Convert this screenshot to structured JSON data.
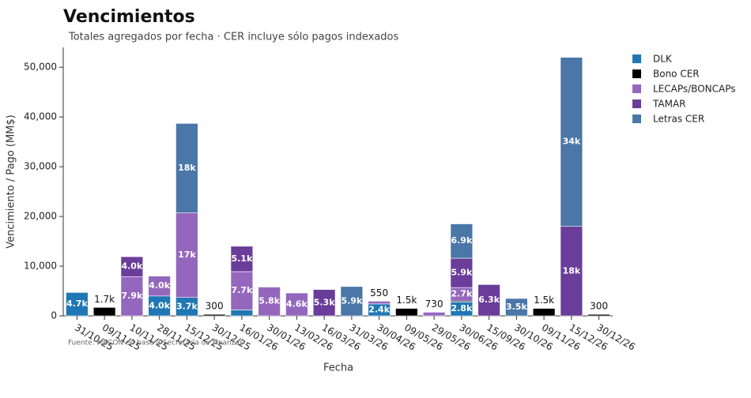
{
  "chart_data": {
    "type": "bar",
    "stacked": true,
    "title": "Vencimientos",
    "subtitle": "Totales agregados por fecha · CER incluye sólo pagos indexados",
    "x_label": "Fecha",
    "y_label": "Vencimiento / Pago (MM$)",
    "source": "Fuente: MECON en base a Secretaría de Finanzas",
    "legend": "top-right",
    "categories": [
      "31/10/25",
      "09/11/25",
      "10/11/25",
      "28/11/25",
      "15/12/25",
      "30/12/25",
      "16/01/26",
      "30/01/26",
      "13/02/26",
      "16/03/26",
      "31/03/26",
      "30/04/26",
      "09/05/26",
      "29/05/26",
      "30/06/26",
      "15/09/26",
      "30/10/26",
      "09/11/26",
      "15/12/26",
      "30/12/26"
    ],
    "series": [
      {
        "name": "DLK",
        "color": "#1f77b4",
        "values": [
          4700,
          null,
          null,
          4000,
          3700,
          null,
          1200,
          null,
          null,
          null,
          null,
          2400,
          null,
          null,
          2800,
          null,
          null,
          null,
          null,
          null
        ],
        "value_labels": [
          "4.7k",
          null,
          null,
          "4.0k",
          "3.7k",
          null,
          null,
          null,
          null,
          null,
          null,
          "2.4k",
          null,
          null,
          "2.8k",
          null,
          null,
          null,
          null,
          null
        ]
      },
      {
        "name": "Bono CER",
        "color": "#000000",
        "values": [
          null,
          1700,
          null,
          null,
          null,
          300,
          null,
          null,
          null,
          null,
          null,
          null,
          1500,
          null,
          200,
          null,
          null,
          1500,
          null,
          300
        ],
        "value_labels": [
          null,
          "1.7k",
          null,
          null,
          null,
          "300",
          null,
          null,
          null,
          null,
          null,
          null,
          "1.5k",
          null,
          null,
          null,
          null,
          "1.5k",
          null,
          "300"
        ]
      },
      {
        "name": "LECAPs/BONCAPs",
        "color": "#9467bd",
        "values": [
          null,
          null,
          7900,
          4000,
          17000,
          null,
          7700,
          5800,
          4600,
          null,
          null,
          550,
          null,
          730,
          2700,
          null,
          null,
          null,
          null,
          null
        ],
        "value_labels": [
          null,
          null,
          "7.9k",
          "4.0k",
          "17k",
          null,
          "7.7k",
          "5.8k",
          "4.6k",
          null,
          null,
          "550",
          null,
          "730",
          "2.7k",
          null,
          null,
          null,
          null,
          null
        ]
      },
      {
        "name": "TAMAR",
        "color": "#6a3d9a",
        "values": [
          null,
          null,
          4000,
          null,
          null,
          null,
          5100,
          null,
          null,
          5300,
          null,
          null,
          null,
          null,
          5900,
          6300,
          null,
          null,
          18000,
          null
        ],
        "value_labels": [
          null,
          null,
          "4.0k",
          null,
          null,
          null,
          "5.1k",
          null,
          null,
          "5.3k",
          null,
          null,
          null,
          null,
          "5.9k",
          "6.3k",
          null,
          null,
          "18k",
          null
        ]
      },
      {
        "name": "Letras CER",
        "color": "#4a76a8",
        "values": [
          null,
          null,
          null,
          null,
          18000,
          null,
          null,
          null,
          null,
          null,
          5900,
          null,
          null,
          null,
          6900,
          null,
          3500,
          null,
          34000,
          null
        ],
        "value_labels": [
          null,
          null,
          null,
          null,
          "18k",
          null,
          null,
          null,
          null,
          null,
          "5.9k",
          null,
          null,
          null,
          "6.9k",
          null,
          "3.5k",
          null,
          "34k",
          null
        ]
      }
    ],
    "ylim": [
      0,
      54000
    ],
    "yticks": [
      0,
      {
        "value": 10000,
        "label": "10,000"
      },
      {
        "value": 20000,
        "label": "20,000"
      },
      {
        "value": 30000,
        "label": "30,000"
      },
      {
        "value": 40000,
        "label": "40,000"
      },
      {
        "value": 50000,
        "label": "50,000"
      }
    ]
  }
}
